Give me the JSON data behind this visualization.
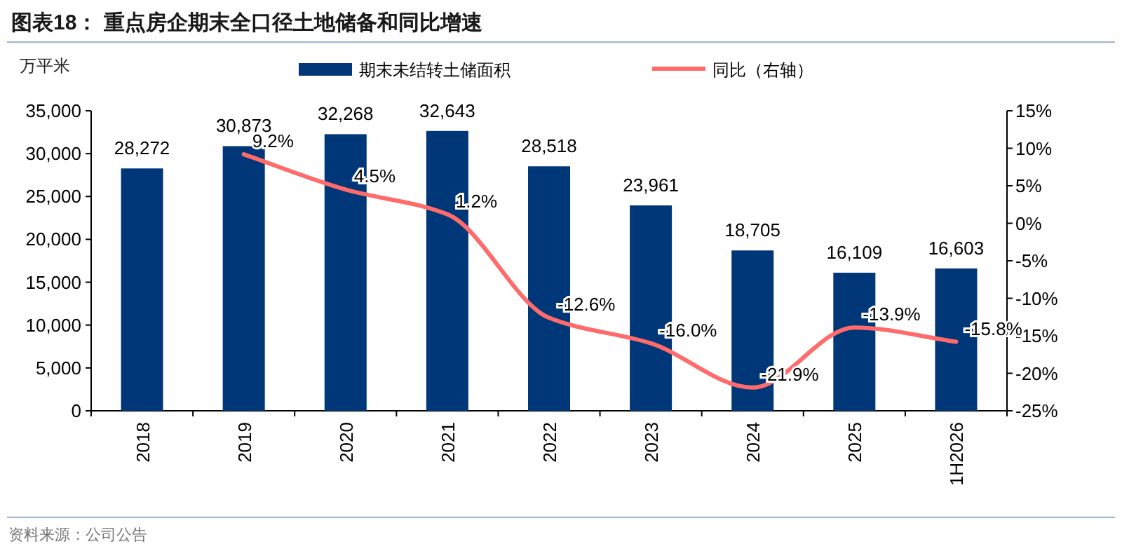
{
  "chart_data": {
    "type": "bar",
    "title": "图表18： 重点房企期末全口径土地储备和同比增速",
    "ylabel": "万平米",
    "categories": [
      "2018",
      "2019",
      "2020",
      "2021",
      "2022",
      "2023",
      "2024",
      "2025",
      "1H2026"
    ],
    "series": [
      {
        "name": "期末未结转土储面积",
        "color": "#003778",
        "values": [
          28272,
          30873,
          32268,
          32643,
          28518,
          23961,
          18705,
          16109,
          16603
        ],
        "value_labels": [
          "28,272",
          "30,873",
          "32,268",
          "32,643",
          "28,518",
          "23,961",
          "18,705",
          "16,109",
          "16,603"
        ]
      },
      {
        "name": "同比（右轴）",
        "type": "line",
        "axis": "y2",
        "color": "#ff6b6b",
        "values": [
          null,
          9.2,
          4.5,
          1.2,
          -12.6,
          -16.0,
          -21.9,
          -13.9,
          -15.8
        ],
        "value_labels": [
          null,
          "9.2%",
          "4.5%",
          "1.2%",
          "-12.6%",
          "-16.0%",
          "-21.9%",
          "-13.9%",
          "-15.8%"
        ]
      }
    ],
    "ylim": [
      0,
      35000
    ],
    "yticks": [
      0,
      {
        "value": 5000,
        "label": "5,000"
      },
      {
        "value": 10000,
        "label": "10,000"
      },
      {
        "value": 15000,
        "label": "15,000"
      },
      {
        "value": 20000,
        "label": "20,000"
      },
      {
        "value": 25000,
        "label": "25,000"
      },
      {
        "value": 30000,
        "label": "30,000"
      },
      {
        "value": 35000,
        "label": "35,000"
      }
    ],
    "y2lim": [
      -25,
      15
    ],
    "y2ticks": [
      {
        "value": -25,
        "label": "-25%"
      },
      {
        "value": -20,
        "label": "-20%"
      },
      {
        "value": -15,
        "label": "-15%"
      },
      {
        "value": -10,
        "label": "-10%"
      },
      {
        "value": -5,
        "label": "-5%"
      },
      {
        "value": 0,
        "label": "0%"
      },
      {
        "value": 5,
        "label": "5%"
      },
      {
        "value": 10,
        "label": "10%"
      },
      {
        "value": 15,
        "label": "15%"
      }
    ],
    "legend": "top",
    "annotations": [
      "资料来源：公司公告"
    ]
  }
}
